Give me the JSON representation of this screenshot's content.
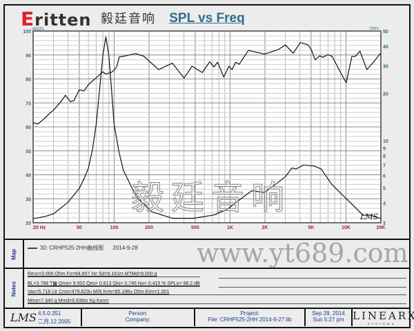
{
  "logo": {
    "brand": "Eritten",
    "brand_cn": "毅廷音响"
  },
  "title": "SPL vs Freq",
  "chart_data": {
    "type": "line",
    "title": "SPL vs Freq",
    "x_scale": "log",
    "xlim": [
      20,
      20000
    ],
    "x_ticks": [
      {
        "v": 20,
        "label": "20  Hz"
      },
      {
        "v": 50,
        "label": "50"
      },
      {
        "v": 100,
        "label": "100"
      },
      {
        "v": 200,
        "label": "200"
      },
      {
        "v": 500,
        "label": "500"
      },
      {
        "v": 1000,
        "label": "1K"
      },
      {
        "v": 2000,
        "label": "2K"
      },
      {
        "v": 5000,
        "label": "5K"
      },
      {
        "v": 10000,
        "label": "10K"
      },
      {
        "v": 20000,
        "label": "20K"
      }
    ],
    "y_left": {
      "label": "dBSPL",
      "lim": [
        20,
        100
      ],
      "ticks": [
        20,
        30,
        40,
        50,
        60,
        70,
        80,
        90,
        100
      ]
    },
    "y_right": {
      "label": "Ohm",
      "scale": "log",
      "lim": [
        3,
        50
      ],
      "ticks": [
        3,
        4,
        5,
        6,
        7,
        8,
        9,
        10,
        20,
        30,
        40,
        50
      ]
    },
    "grid": true,
    "series": [
      {
        "axis": "left",
        "points": [
          [
            20,
            61.7
          ],
          [
            22,
            61.2
          ],
          [
            25,
            63.5
          ],
          [
            28,
            65.8
          ],
          [
            30,
            67
          ],
          [
            35,
            70.7
          ],
          [
            38,
            73.2
          ],
          [
            42,
            70.5
          ],
          [
            45,
            71
          ],
          [
            50,
            75.5
          ],
          [
            55,
            75
          ],
          [
            60,
            77.7
          ],
          [
            70,
            80.5
          ],
          [
            80,
            83
          ],
          [
            85,
            82
          ],
          [
            95,
            82.8
          ],
          [
            100,
            83.7
          ],
          [
            105,
            85
          ],
          [
            111,
            89.2
          ],
          [
            125,
            89.6
          ],
          [
            153,
            90.6
          ],
          [
            180,
            89.5
          ],
          [
            242,
            83.9
          ],
          [
            318,
            86.6
          ],
          [
            401,
            80.4
          ],
          [
            470,
            85.3
          ],
          [
            575,
            82.7
          ],
          [
            668,
            87.2
          ],
          [
            725,
            85
          ],
          [
            780,
            87
          ],
          [
            883,
            80.8
          ],
          [
            977,
            85.3
          ],
          [
            1040,
            83.9
          ],
          [
            1120,
            87
          ],
          [
            1200,
            86.1
          ],
          [
            1320,
            89.2
          ],
          [
            1440,
            91.9
          ],
          [
            1980,
            90.4
          ],
          [
            2610,
            92.3
          ],
          [
            3000,
            94.2
          ],
          [
            3510,
            90.7
          ],
          [
            4030,
            95.2
          ],
          [
            4720,
            94.2
          ],
          [
            5050,
            91.9
          ],
          [
            5420,
            88
          ],
          [
            5930,
            89.6
          ],
          [
            6320,
            89
          ],
          [
            6960,
            90.2
          ],
          [
            7600,
            89.4
          ],
          [
            8750,
            83.7
          ],
          [
            10040,
            78.4
          ],
          [
            11250,
            89.4
          ],
          [
            12050,
            89.4
          ],
          [
            13200,
            91.6
          ],
          [
            15140,
            83.9
          ],
          [
            17380,
            87.2
          ],
          [
            19600,
            90.4
          ],
          [
            20000,
            90.4
          ]
        ]
      },
      {
        "axis": "right",
        "points": [
          [
            20,
            3.18
          ],
          [
            25,
            3.28
          ],
          [
            30,
            3.42
          ],
          [
            40,
            4.05
          ],
          [
            50,
            4.96
          ],
          [
            55,
            5.72
          ],
          [
            60,
            6.7
          ],
          [
            65,
            8.8
          ],
          [
            70,
            12.7
          ],
          [
            75,
            21.3
          ],
          [
            80,
            35
          ],
          [
            84.8,
            45.9
          ],
          [
            90,
            35
          ],
          [
            95,
            21
          ],
          [
            100,
            12.7
          ],
          [
            110,
            8.5
          ],
          [
            120,
            6.5
          ],
          [
            140,
            5.13
          ],
          [
            160,
            4.3
          ],
          [
            210,
            3.53
          ],
          [
            318,
            3.2
          ],
          [
            480,
            3.2
          ],
          [
            725,
            3.36
          ],
          [
            950,
            3.66
          ],
          [
            1260,
            4.3
          ],
          [
            1540,
            4.8
          ],
          [
            1980,
            4.68
          ],
          [
            2490,
            5.3
          ],
          [
            3000,
            5.9
          ],
          [
            3420,
            6.7
          ],
          [
            3700,
            6.6
          ],
          [
            4310,
            7.0
          ],
          [
            5300,
            6.9
          ],
          [
            6100,
            6.6
          ],
          [
            7500,
            5.3
          ],
          [
            9500,
            4.45
          ],
          [
            12000,
            3.76
          ],
          [
            14000,
            3.35
          ],
          [
            16000,
            3.36
          ],
          [
            19500,
            3.2
          ],
          [
            20000,
            3.2
          ]
        ]
      }
    ]
  },
  "signature": "LMS",
  "watermark_cn": "毅廷音响",
  "watermark_url": "www.yt689.com",
  "map": {
    "label": "Map",
    "entry": "30: CRHP525-2HH曲线图",
    "date": "2014-9-28"
  },
  "notes": {
    "label": "Notes",
    "lines": [
      "Revc=3.000 Ohm  Fo=84.807 Hz  Sd=9.161m M?Md=8.000 g",
      "BL=3.798 T▩  Qms= 9.002  Qes= 0.813  Qts= 0.746  No= 0.415 %  SPLo= 88.2 dB",
      "Vas=5.718 Ltr  Cms=479.823u M/N  Krm=85.196u Ohm  Erm=1.001",
      "Mms=7.340 g  Mmd=6.836m Kg  Kxm="
    ]
  },
  "footer": {
    "app": "LMS",
    "version": "4.5.0.351",
    "build_date": "二月.12.2005",
    "person": "Person:",
    "company": "Company:",
    "project": "Project:",
    "file": "File: CRHP525-2HH   2014-9-27.lib",
    "date": "Sep 28, 2014",
    "time": "Sun  5:27 pm",
    "vendor": "LINEARX",
    "vendor_sub": "S Y S T E M S"
  },
  "colors": {
    "title": "#2e6c8c",
    "axis_left": "#2e6c8c",
    "axis_x": "#a0204a",
    "curve": "#111111",
    "logo_red": "#e0202a"
  }
}
